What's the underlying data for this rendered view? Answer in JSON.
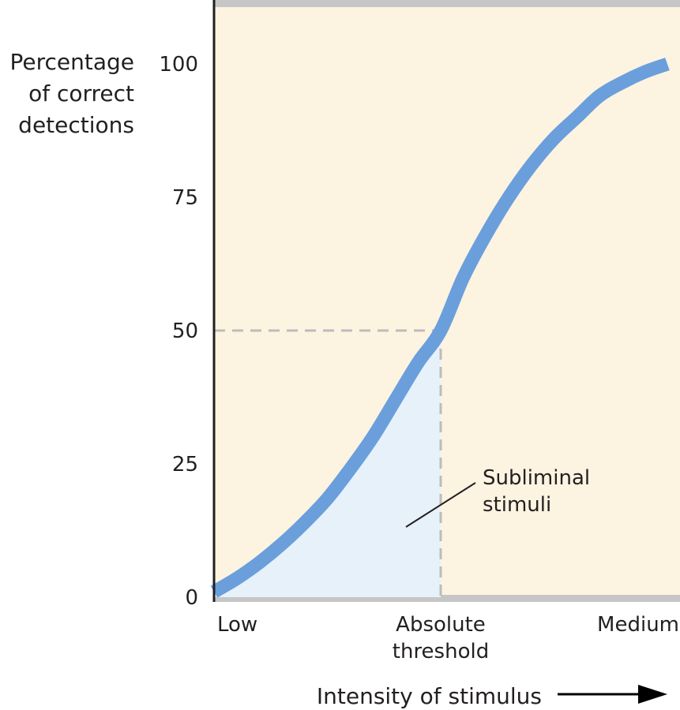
{
  "chart_data": {
    "type": "line",
    "title": "",
    "ylabel": [
      "Percentage",
      "of correct",
      "detections"
    ],
    "xlabel": "Intensity of stimulus",
    "ylim": [
      0,
      112
    ],
    "xlim": [
      0,
      1
    ],
    "yticks": [
      0,
      25,
      50,
      75,
      100
    ],
    "ytick_labels": [
      "0",
      "25",
      "50",
      "75",
      "100"
    ],
    "xtick_values": [
      0,
      0.5,
      1
    ],
    "xtick_labels": [
      [
        "Low"
      ],
      [
        "Absolute",
        "threshold"
      ],
      [
        "Medium"
      ]
    ],
    "grid": false,
    "series": [
      {
        "name": "Detection curve",
        "x": [
          0,
          0.05,
          0.1,
          0.15,
          0.2,
          0.25,
          0.3,
          0.35,
          0.4,
          0.45,
          0.5,
          0.55,
          0.6,
          0.65,
          0.7,
          0.75,
          0.8,
          0.85,
          0.9,
          0.95,
          1.0
        ],
        "y": [
          1,
          3.5,
          6.5,
          10,
          14,
          18.5,
          24,
          30,
          37,
          44,
          50,
          60,
          68,
          75,
          81,
          86,
          90,
          94,
          96.5,
          98.5,
          100
        ]
      }
    ],
    "threshold": {
      "x": 0.5,
      "y": 50
    },
    "annotations": [
      {
        "text": [
          "Subliminal",
          "stimuli"
        ],
        "region": "area under curve left of absolute threshold"
      }
    ],
    "colors": {
      "plot_background": "#fdf3e1",
      "curve": "#6a9fdc",
      "subliminal_fill": "#e6f1fa",
      "reference_line": "#bcbcbc",
      "border_bar": "#c6c6c6",
      "axis": "#231f20",
      "arrow": "#000000"
    }
  }
}
